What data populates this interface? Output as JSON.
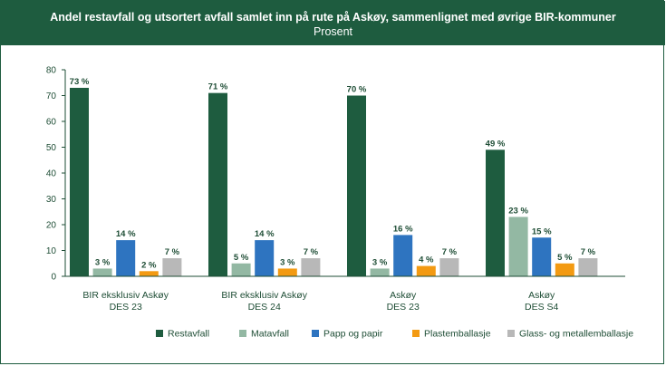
{
  "header": {
    "title": "Andel restavfall og utsortert avfall samlet inn på rute på Askøy, sammenlignet med øvrige BIR-kommuner",
    "subtitle": "Prosent"
  },
  "chart_data": {
    "type": "bar",
    "title": "Andel restavfall og utsortert avfall samlet inn på rute på Askøy, sammenlignet med øvrige BIR-kommuner",
    "subtitle": "Prosent",
    "ylim": [
      0,
      80
    ],
    "yticks": [
      0,
      10,
      20,
      30,
      40,
      50,
      60,
      70,
      80
    ],
    "categories": [
      [
        "BIR eksklusiv Askøy",
        "DES 23"
      ],
      [
        "BIR eksklusiv Askøy",
        "DES 24"
      ],
      [
        "Askøy",
        "DES 23"
      ],
      [
        "Askøy",
        "DES S4"
      ]
    ],
    "series": [
      {
        "name": "Restavfall",
        "color": "#1e5c3f",
        "values": [
          73,
          71,
          70,
          49
        ],
        "labels": [
          "73 %",
          "71 %",
          "70 %",
          "49 %"
        ]
      },
      {
        "name": "Matavfall",
        "color": "#93b8a3",
        "values": [
          3,
          5,
          3,
          23
        ],
        "labels": [
          "3 %",
          "5 %",
          "3 %",
          "23 %"
        ]
      },
      {
        "name": "Papp og papir",
        "color": "#2e74c0",
        "values": [
          14,
          14,
          16,
          15
        ],
        "labels": [
          "14 %",
          "14 %",
          "16 %",
          "15 %"
        ]
      },
      {
        "name": "Plastemballasje",
        "color": "#f39a12",
        "values": [
          2,
          3,
          4,
          5
        ],
        "labels": [
          "2 %",
          "3 %",
          "4 %",
          "5 %"
        ]
      },
      {
        "name": "Glass- og metallemballasje",
        "color": "#b8b8b8",
        "values": [
          7,
          7,
          7,
          7
        ],
        "labels": [
          "7 %",
          "7 %",
          "7 %",
          "7 %"
        ]
      }
    ],
    "legend_position": "bottom-center"
  }
}
